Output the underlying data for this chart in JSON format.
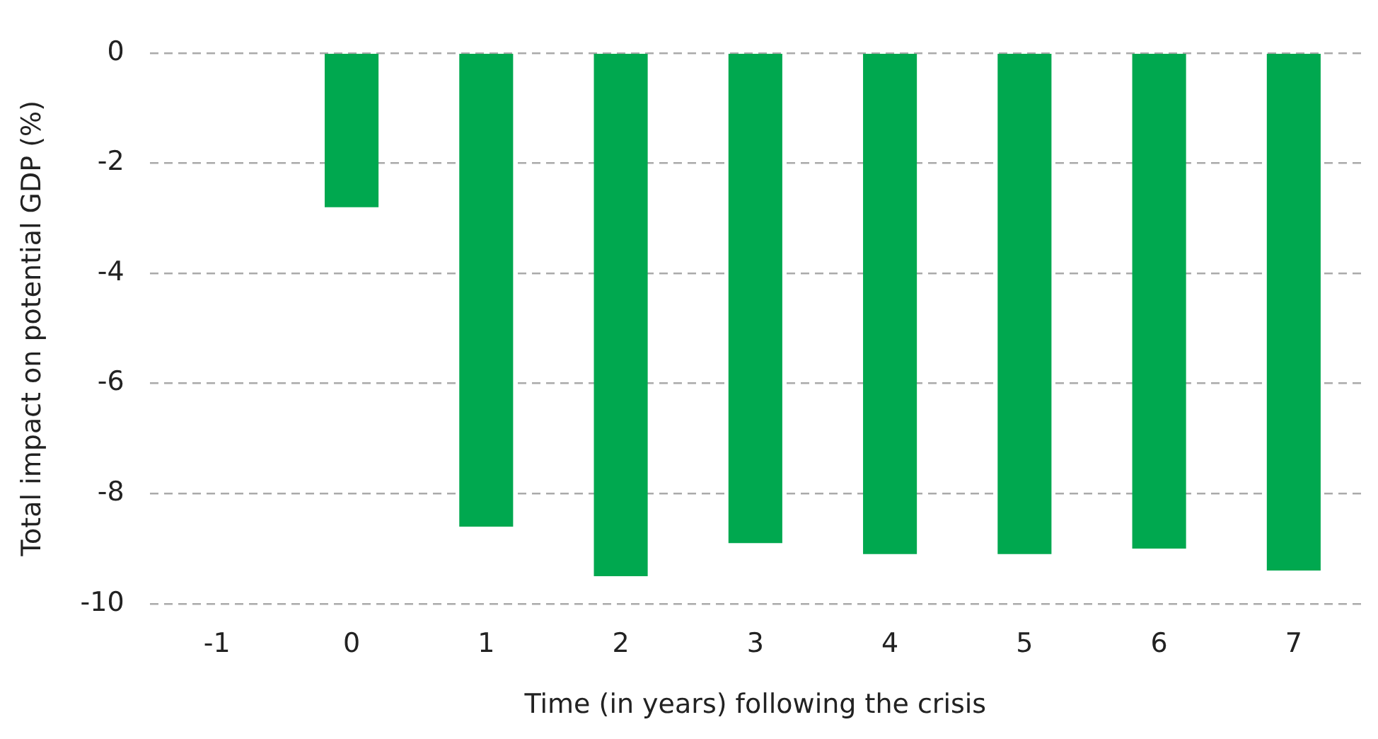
{
  "chart_data": {
    "type": "bar",
    "categories": [
      "-1",
      "0",
      "1",
      "2",
      "3",
      "4",
      "5",
      "6",
      "7"
    ],
    "values": [
      null,
      -2.8,
      -8.6,
      -9.5,
      -8.9,
      -9.1,
      -9.1,
      -9.0,
      -9.4
    ],
    "color": "#00a84f",
    "xlabel": "Time (in years) following the crisis",
    "ylabel": "Total impact on potential GDP (%)",
    "ylim": [
      -10,
      0
    ],
    "yticks": [
      0,
      -2,
      -4,
      -6,
      -8,
      -10
    ],
    "grid": "y",
    "legend": false
  }
}
